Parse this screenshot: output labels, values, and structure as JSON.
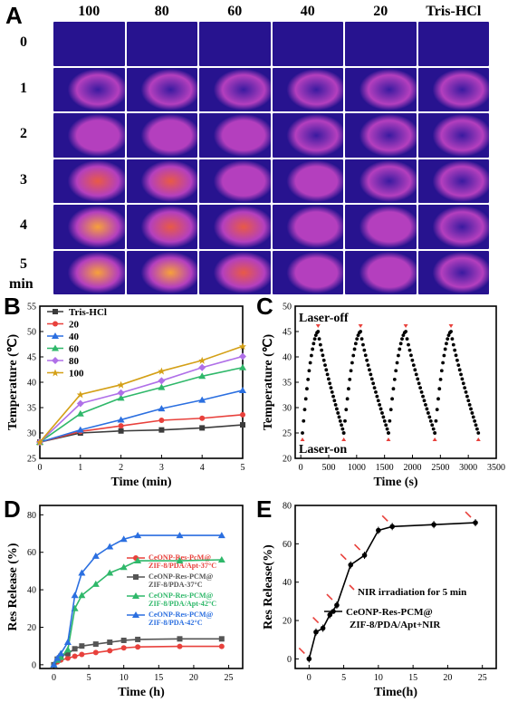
{
  "panel_labels": {
    "a": "A",
    "b": "B",
    "c": "C",
    "d": "D",
    "e": "E"
  },
  "thermal_grid": {
    "column_headers": [
      "100",
      "80",
      "60",
      "40",
      "20",
      "Tris-HCl"
    ],
    "row_labels": [
      "0",
      "1",
      "2",
      "3",
      "4",
      "5"
    ],
    "row_unit": "min",
    "colors": {
      "background": "#27138f",
      "cold": "#3a1aa0",
      "warm": "#b43fbe",
      "hot": "#e85a46",
      "hottest": "#f7a13a"
    }
  },
  "chart_data": [
    {
      "id": "B",
      "type": "line",
      "xlabel": "Time (min)",
      "ylabel": "Temperature (℃)",
      "xlim": [
        0,
        5
      ],
      "ylim": [
        25,
        55
      ],
      "xticks": [
        "0",
        "1",
        "2",
        "3",
        "4",
        "5"
      ],
      "yticks": [
        "25",
        "30",
        "35",
        "40",
        "45",
        "50",
        "55"
      ],
      "x": [
        0,
        1,
        2,
        3,
        4,
        5
      ],
      "legend_position": "top-left",
      "series": [
        {
          "name": "Tris-HCl",
          "color": "#3c3c3c",
          "values": [
            28.2,
            30.0,
            30.4,
            30.6,
            31.0,
            31.6
          ]
        },
        {
          "name": "20",
          "color": "#e8413c",
          "values": [
            28.2,
            30.3,
            31.4,
            32.5,
            32.9,
            33.6
          ]
        },
        {
          "name": "40",
          "color": "#2b6fe0",
          "values": [
            28.2,
            30.6,
            32.6,
            34.8,
            36.5,
            38.4
          ]
        },
        {
          "name": "60",
          "color": "#2fb86a",
          "values": [
            28.2,
            33.8,
            36.9,
            39.0,
            41.2,
            42.9
          ]
        },
        {
          "name": "80",
          "color": "#b070e8",
          "values": [
            28.2,
            35.8,
            37.9,
            40.3,
            42.9,
            45.1
          ]
        },
        {
          "name": "100",
          "color": "#d4a017",
          "values": [
            28.2,
            37.6,
            39.5,
            42.2,
            44.3,
            47.1
          ]
        }
      ]
    },
    {
      "id": "C",
      "type": "scatter",
      "xlabel": "Time (s)",
      "ylabel": "Temperature (℃)",
      "xlim": [
        -100,
        3500
      ],
      "ylim": [
        20,
        50
      ],
      "xticks": [
        "0",
        "500",
        "1000",
        "1500",
        "2000",
        "2500",
        "3000",
        "3500"
      ],
      "yticks": [
        "20",
        "25",
        "30",
        "35",
        "40",
        "45",
        "50"
      ],
      "annotations": [
        "Laser-off",
        "Laser-on"
      ],
      "cycles": [
        {
          "start": 30,
          "peak": 310,
          "end": 770
        },
        {
          "start": 770,
          "peak": 1070,
          "end": 1570
        },
        {
          "start": 1570,
          "peak": 1880,
          "end": 2400
        },
        {
          "start": 2400,
          "peak": 2690,
          "end": 3180
        }
      ],
      "min_temp": 25,
      "max_temp": 45
    },
    {
      "id": "D",
      "type": "line",
      "xlabel": "Time (h)",
      "ylabel": "Res Release (%)",
      "xlim": [
        -2,
        27
      ],
      "ylim": [
        -2,
        85
      ],
      "xticks": [
        "0",
        "5",
        "10",
        "15",
        "20",
        "25"
      ],
      "yticks": [
        "0",
        "20",
        "40",
        "60",
        "80"
      ],
      "x": [
        0,
        0.5,
        1,
        2,
        3,
        4,
        6,
        8,
        10,
        12,
        18,
        24
      ],
      "series": [
        {
          "name": "CeONP-Res-PcM@ ZIF-8/PDA/Apt-37°C",
          "color": "#e8413c",
          "values": [
            0,
            1.5,
            2.5,
            3.5,
            4.5,
            5.5,
            6.5,
            7.5,
            9,
            9.5,
            9.8,
            9.8
          ]
        },
        {
          "name": "CeONP-Res-PCM@ ZIF-8/PDA-37°C",
          "color": "#555555",
          "values": [
            0,
            3,
            4.5,
            6,
            8.5,
            10,
            11,
            12,
            13,
            13.5,
            13.8,
            13.8
          ]
        },
        {
          "name": "CeONP-Res-PCM@ ZIF-8/PDA/Apt-42°C",
          "color": "#2fb86a",
          "values": [
            0,
            2.5,
            4,
            8,
            30,
            37,
            43,
            49,
            52,
            55.5,
            55.5,
            56
          ]
        },
        {
          "name": "CeONP-Res-PCM@ ZIF-8/PDA-42°C",
          "color": "#2b6fe0",
          "values": [
            0,
            3.5,
            6,
            12,
            37,
            49,
            58,
            63,
            67,
            69,
            69,
            69
          ]
        }
      ]
    },
    {
      "id": "E",
      "type": "line",
      "xlabel": "Time(h)",
      "ylabel": "Res Release(%)",
      "xlim": [
        -2,
        27
      ],
      "ylim": [
        -5,
        80
      ],
      "xticks": [
        "0",
        "5",
        "10",
        "15",
        "20",
        "25"
      ],
      "yticks": [
        "0",
        "20",
        "40",
        "60",
        "80"
      ],
      "x": [
        0,
        1,
        2,
        3,
        4,
        6,
        8,
        10,
        12,
        18,
        24
      ],
      "series": [
        {
          "name": "CeONP-Res-PCM@ ZIF-8/PDA/Apt+NIR",
          "color": "#000000",
          "values": [
            0,
            14,
            16,
            23,
            28,
            49,
            54,
            67,
            69,
            70,
            71
          ]
        }
      ],
      "arrow_at_x": [
        0,
        2,
        4,
        6,
        8,
        12,
        24
      ],
      "annotation": "NIR irradiation for 5 min"
    }
  ]
}
